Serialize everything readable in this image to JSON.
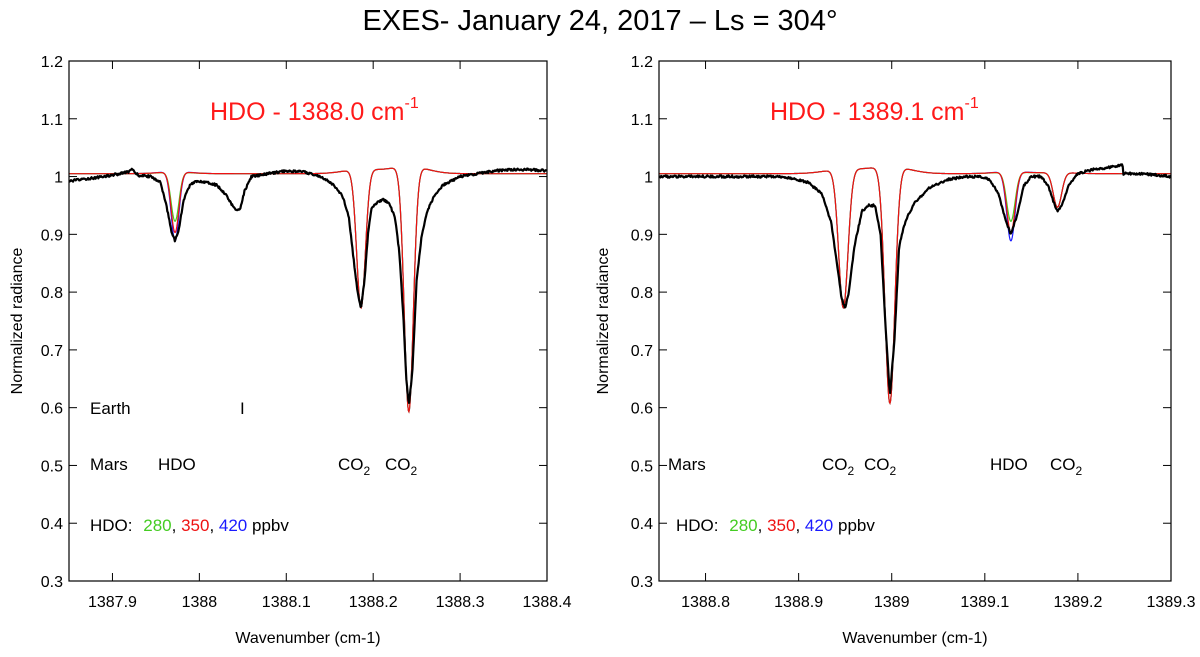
{
  "title": "EXES- January 24, 2017 – Ls = 304°",
  "chart_data": [
    {
      "type": "line",
      "header": {
        "text": "HDO - 1388.0 cm",
        "sup": "-1",
        "color": "#ff1a1a"
      },
      "xlabel": "Wavenumber (cm-1)",
      "ylabel": "Normalized radiance",
      "xlim": [
        1387.85,
        1388.4
      ],
      "ylim": [
        0.3,
        1.2
      ],
      "xticks": [
        1387.9,
        1388.0,
        1388.1,
        1388.2,
        1388.3,
        1388.4
      ],
      "xtick_labels": [
        "1387.9",
        "1388",
        "1388.1",
        "1388.2",
        "1388.3",
        "1388.4"
      ],
      "yticks": [
        0.3,
        0.4,
        0.5,
        0.6,
        0.7,
        0.8,
        0.9,
        1.0,
        1.1,
        1.2
      ],
      "ytick_labels": [
        "0.3",
        "0.4",
        "0.5",
        "0.6",
        "0.7",
        "0.8",
        "0.9",
        "1",
        "1.1",
        "1.2"
      ],
      "annotations": {
        "earth_label": "Earth",
        "earth_marker": "I",
        "mars_label": "Mars",
        "mars_lines": [
          {
            "id": "hdo",
            "text": "HDO",
            "sub": ""
          },
          {
            "id": "co2a",
            "text": "CO",
            "sub": "2"
          },
          {
            "id": "co2b",
            "text": "CO",
            "sub": "2"
          }
        ],
        "legend": {
          "prefix": "HDO:",
          "v1": "280",
          "v2": "350",
          "v3": "420",
          "unit": "ppbv"
        }
      },
      "model": {
        "baseline": 1.005,
        "lines": [
          {
            "label": "HDO",
            "center": 1387.972,
            "depth280": 0.085,
            "depth350": 0.105,
            "depth420": 0.12,
            "width": 0.0045
          },
          {
            "label": "CO2",
            "center": 1388.186,
            "depth": 0.24,
            "width": 0.005
          },
          {
            "label": "CO2",
            "center": 1388.241,
            "depth": 0.425,
            "width": 0.0052
          }
        ]
      },
      "observed": {
        "x": [
          1387.85,
          1387.87,
          1387.89,
          1387.905,
          1387.918,
          1387.922,
          1387.93,
          1387.945,
          1387.955,
          1387.962,
          1387.968,
          1387.972,
          1387.976,
          1387.982,
          1387.99,
          1388.0,
          1388.01,
          1388.02,
          1388.03,
          1388.038,
          1388.043,
          1388.047,
          1388.052,
          1388.06,
          1388.08,
          1388.1,
          1388.12,
          1388.14,
          1388.155,
          1388.165,
          1388.172,
          1388.178,
          1388.182,
          1388.186,
          1388.19,
          1388.194,
          1388.198,
          1388.205,
          1388.212,
          1388.218,
          1388.225,
          1388.23,
          1388.235,
          1388.238,
          1388.241,
          1388.245,
          1388.25,
          1388.256,
          1388.262,
          1388.27,
          1388.28,
          1388.3,
          1388.32,
          1388.34,
          1388.36,
          1388.38,
          1388.4
        ],
        "y": [
          0.992,
          0.996,
          1.0,
          1.004,
          1.008,
          1.012,
          1.002,
          1.0,
          0.99,
          0.95,
          0.905,
          0.889,
          0.905,
          0.96,
          0.988,
          0.992,
          0.99,
          0.985,
          0.97,
          0.95,
          0.94,
          0.945,
          0.975,
          1.0,
          1.005,
          1.01,
          1.008,
          1.0,
          0.985,
          0.965,
          0.93,
          0.85,
          0.8,
          0.772,
          0.82,
          0.9,
          0.945,
          0.955,
          0.96,
          0.955,
          0.93,
          0.87,
          0.75,
          0.65,
          0.605,
          0.66,
          0.82,
          0.9,
          0.94,
          0.965,
          0.985,
          1.0,
          1.005,
          1.01,
          1.012,
          1.012,
          1.01
        ]
      }
    },
    {
      "type": "line",
      "header": {
        "text": "HDO - 1389.1 cm",
        "sup": "-1",
        "color": "#ff1a1a"
      },
      "xlabel": "Wavenumber (cm-1)",
      "ylabel": "Normalized radiance",
      "xlim": [
        1388.75,
        1389.3
      ],
      "ylim": [
        0.3,
        1.2
      ],
      "xticks": [
        1388.8,
        1388.9,
        1389.0,
        1389.1,
        1389.2,
        1389.3
      ],
      "xtick_labels": [
        "1388.8",
        "1388.9",
        "1389",
        "1389.1",
        "1389.2",
        "1389.3"
      ],
      "yticks": [
        0.3,
        0.4,
        0.5,
        0.6,
        0.7,
        0.8,
        0.9,
        1.0,
        1.1,
        1.2
      ],
      "ytick_labels": [
        "0.3",
        "0.4",
        "0.5",
        "0.6",
        "0.7",
        "0.8",
        "0.9",
        "1",
        "1.1",
        "1.2"
      ],
      "annotations": {
        "mars_label": "Mars",
        "mars_lines": [
          {
            "id": "co2a",
            "text": "CO",
            "sub": "2"
          },
          {
            "id": "co2b",
            "text": "CO",
            "sub": "2"
          },
          {
            "id": "hdo",
            "text": "HDO",
            "sub": ""
          },
          {
            "id": "co2c",
            "text": "CO",
            "sub": "2"
          }
        ],
        "legend": {
          "prefix": "HDO:",
          "v1": "280",
          "v2": "350",
          "v3": "420",
          "unit": "ppbv"
        }
      },
      "model": {
        "baseline": 1.005,
        "lines": [
          {
            "label": "CO2",
            "center": 1388.948,
            "depth": 0.24,
            "width": 0.005
          },
          {
            "label": "CO2",
            "center": 1388.998,
            "depth": 0.41,
            "width": 0.0052
          },
          {
            "label": "HDO",
            "center": 1389.128,
            "depth280": 0.085,
            "depth350": 0.105,
            "depth420": 0.12,
            "width": 0.0045
          },
          {
            "label": "CO2",
            "center": 1389.178,
            "depth": 0.06,
            "width": 0.0045
          }
        ]
      },
      "observed": {
        "x": [
          1388.75,
          1388.78,
          1388.81,
          1388.84,
          1388.87,
          1388.89,
          1388.91,
          1388.925,
          1388.935,
          1388.942,
          1388.946,
          1388.95,
          1388.954,
          1388.96,
          1388.968,
          1388.975,
          1388.982,
          1388.988,
          1388.993,
          1388.998,
          1389.003,
          1389.008,
          1389.015,
          1389.025,
          1389.04,
          1389.06,
          1389.08,
          1389.095,
          1389.105,
          1389.115,
          1389.122,
          1389.128,
          1389.134,
          1389.142,
          1389.15,
          1389.16,
          1389.168,
          1389.174,
          1389.178,
          1389.183,
          1389.19,
          1389.2,
          1389.215,
          1389.23,
          1389.248,
          1389.249,
          1389.25,
          1389.27,
          1389.3
        ],
        "y": [
          1.0,
          1.0,
          1.0,
          1.0,
          1.0,
          0.998,
          0.99,
          0.97,
          0.92,
          0.84,
          0.79,
          0.772,
          0.8,
          0.88,
          0.94,
          0.95,
          0.95,
          0.9,
          0.75,
          0.62,
          0.72,
          0.88,
          0.925,
          0.955,
          0.98,
          0.995,
          1.0,
          1.0,
          0.995,
          0.97,
          0.925,
          0.9,
          0.93,
          0.985,
          1.0,
          1.0,
          0.985,
          0.955,
          0.94,
          0.95,
          0.985,
          1.005,
          1.012,
          1.015,
          1.02,
          1.0,
          1.005,
          1.005,
          1.0
        ]
      }
    }
  ]
}
